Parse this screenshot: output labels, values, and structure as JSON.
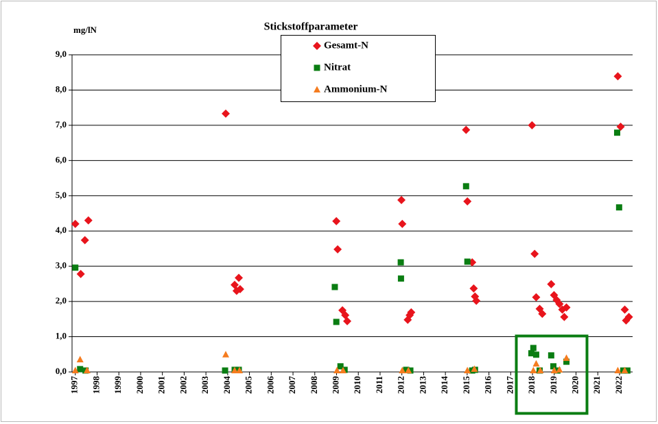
{
  "chart_data": {
    "type": "scatter",
    "title": "Stickstoffparameter",
    "y_label": "mg/lN",
    "xlim": [
      1996.85,
      2022.6
    ],
    "xticks": [
      1997,
      1998,
      1999,
      2000,
      2001,
      2002,
      2003,
      2004,
      2005,
      2006,
      2007,
      2008,
      2009,
      2010,
      2011,
      2012,
      2013,
      2014,
      2015,
      2016,
      2017,
      2018,
      2019,
      2020,
      2021,
      2022
    ],
    "ylim": [
      0,
      9
    ],
    "yticks": [
      {
        "value": 0,
        "label": "0,0"
      },
      {
        "value": 1,
        "label": "1,0"
      },
      {
        "value": 2,
        "label": "2,0"
      },
      {
        "value": 3,
        "label": "3,0"
      },
      {
        "value": 4,
        "label": "4,0"
      },
      {
        "value": 5,
        "label": "5,0"
      },
      {
        "value": 6,
        "label": "6,0"
      },
      {
        "value": 7,
        "label": "7,0"
      },
      {
        "value": 8,
        "label": "8,0"
      },
      {
        "value": 9,
        "label": "9,0"
      }
    ],
    "grid": true,
    "legend": "top",
    "series": [
      {
        "name": "Gesamt-N",
        "color": "#e8141c",
        "marker": "diamond",
        "x": [
          1997.0,
          1997.25,
          1997.44,
          1997.6,
          2003.91,
          2004.32,
          2004.41,
          2004.51,
          2004.57,
          2008.99,
          2009.05,
          2009.27,
          2009.4,
          2009.49,
          2011.98,
          2012.02,
          2012.27,
          2012.36,
          2012.43,
          2014.95,
          2015.01,
          2015.23,
          2015.3,
          2015.36,
          2015.42,
          2017.98,
          2018.1,
          2018.17,
          2018.33,
          2018.45,
          2018.86,
          2018.99,
          2019.11,
          2019.24,
          2019.37,
          2019.46,
          2019.56,
          2021.92,
          2022.05,
          2022.24,
          2022.3,
          2022.43
        ],
        "values": [
          4.2,
          2.78,
          3.74,
          4.3,
          7.33,
          2.47,
          2.3,
          2.67,
          2.35,
          4.28,
          3.48,
          1.75,
          1.61,
          1.44,
          4.88,
          4.2,
          1.48,
          1.61,
          1.69,
          6.87,
          4.84,
          3.11,
          2.37,
          2.14,
          2.02,
          7.0,
          3.35,
          2.12,
          1.79,
          1.65,
          2.49,
          2.18,
          2.04,
          1.93,
          1.77,
          1.56,
          1.83,
          8.39,
          6.96,
          1.77,
          1.46,
          1.56
        ]
      },
      {
        "name": "Nitrat",
        "color": "#0a7d12",
        "marker": "square",
        "x": [
          1997.0,
          1997.22,
          1997.47,
          2003.88,
          2004.32,
          2004.51,
          2008.92,
          2008.99,
          2009.18,
          2009.37,
          2011.95,
          2011.96,
          2012.2,
          2012.39,
          2014.95,
          2015.01,
          2015.23,
          2015.36,
          2018.04,
          2017.95,
          2018.17,
          2018.33,
          2018.86,
          2018.96,
          2019.15,
          2019.56,
          2021.89,
          2021.98,
          2022.17,
          2022.36
        ],
        "values": [
          2.96,
          0.08,
          0.04,
          0.04,
          0.06,
          0.06,
          2.41,
          1.42,
          0.16,
          0.06,
          3.11,
          2.65,
          0.06,
          0.04,
          5.27,
          3.13,
          0.04,
          0.06,
          0.68,
          0.53,
          0.49,
          0.04,
          0.47,
          0.16,
          0.04,
          0.29,
          6.79,
          4.67,
          0.04,
          0.04
        ]
      },
      {
        "name": "Ammonium-N",
        "color": "#f57c1f",
        "marker": "triangle",
        "x": [
          1997.0,
          1997.22,
          1997.54,
          2003.91,
          2004.32,
          2004.54,
          2009.02,
          2009.3,
          2012.02,
          2012.3,
          2015.01,
          2015.33,
          2018.04,
          2018.17,
          2018.36,
          2019.0,
          2019.24,
          2019.56,
          2021.92,
          2022.24
        ],
        "values": [
          0.04,
          0.35,
          0.04,
          0.49,
          0.04,
          0.04,
          0.04,
          0.04,
          0.04,
          0.04,
          0.04,
          0.08,
          0.04,
          0.23,
          0.04,
          0.04,
          0.06,
          0.39,
          0.04,
          0.04
        ]
      }
    ]
  }
}
